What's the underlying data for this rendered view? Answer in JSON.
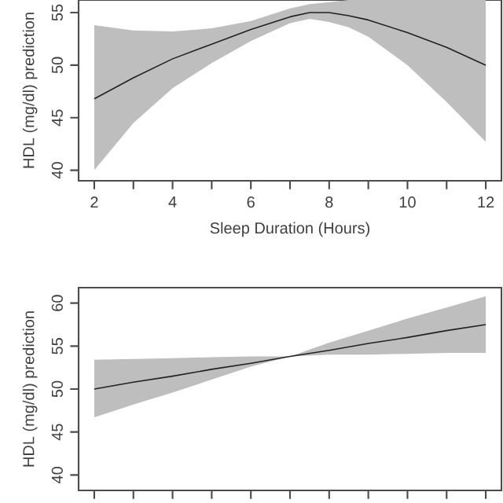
{
  "chart_data": [
    {
      "type": "line",
      "xlabel": "Sleep Duration (Hours)",
      "ylabel": "HDL (mg/dl) prediction",
      "xlim": [
        1.6,
        12.4
      ],
      "ylim": [
        39,
        56.2
      ],
      "xticks": [
        2,
        {
          "value": 3,
          "label": null
        },
        4,
        {
          "value": 5,
          "label": null
        },
        6,
        {
          "value": 7,
          "label": null
        },
        8,
        {
          "value": 9,
          "label": null
        },
        10,
        {
          "value": 11,
          "label": null
        },
        12
      ],
      "yticks": [
        40,
        45,
        50,
        55
      ],
      "line_style": "solid",
      "series": [
        {
          "color": "#222222",
          "x": [
            2,
            3,
            4,
            5,
            6,
            7,
            7.5,
            8,
            8.5,
            9,
            10,
            11,
            12
          ],
          "values": [
            46.8,
            48.8,
            50.6,
            52,
            53.4,
            54.6,
            55,
            55,
            54.7,
            54.3,
            53.1,
            51.7,
            50
          ],
          "lower": [
            40,
            44.5,
            47.8,
            50.2,
            52.3,
            54,
            54.4,
            54.1,
            53.6,
            52.7,
            50,
            46.5,
            42.7
          ],
          "upper": [
            53.8,
            53.3,
            53.2,
            53.5,
            54.2,
            55.4,
            55.8,
            56.0,
            56.2,
            56.2,
            56.2,
            56.2,
            56.2
          ]
        }
      ]
    },
    {
      "type": "line",
      "ylabel": "HDL (mg/dl) prediction",
      "xlim": [
        1.6,
        12.4
      ],
      "ylim": [
        38.2,
        61.8
      ],
      "xticks": [
        2,
        3,
        4,
        5,
        6,
        7,
        8,
        9,
        10,
        11,
        12
      ],
      "yticks": [
        40,
        45,
        50,
        55,
        60
      ],
      "tick_labels": "y",
      "line_style": "solid",
      "series": [
        {
          "color": "#222222",
          "x": [
            2,
            3,
            4,
            5,
            6,
            7,
            8,
            9,
            10,
            11,
            12
          ],
          "values": [
            50,
            50.8,
            51.5,
            52.3,
            53,
            53.8,
            54.5,
            55.3,
            56,
            56.8,
            57.5
          ],
          "lower": [
            46.7,
            48.2,
            49.6,
            51.1,
            52.6,
            53.8,
            54,
            54,
            54.1,
            54.2,
            54.2
          ],
          "upper": [
            53.4,
            53.5,
            53.6,
            53.7,
            53.8,
            53.8,
            55.4,
            56.8,
            58.2,
            59.5,
            60.8
          ]
        }
      ]
    }
  ]
}
